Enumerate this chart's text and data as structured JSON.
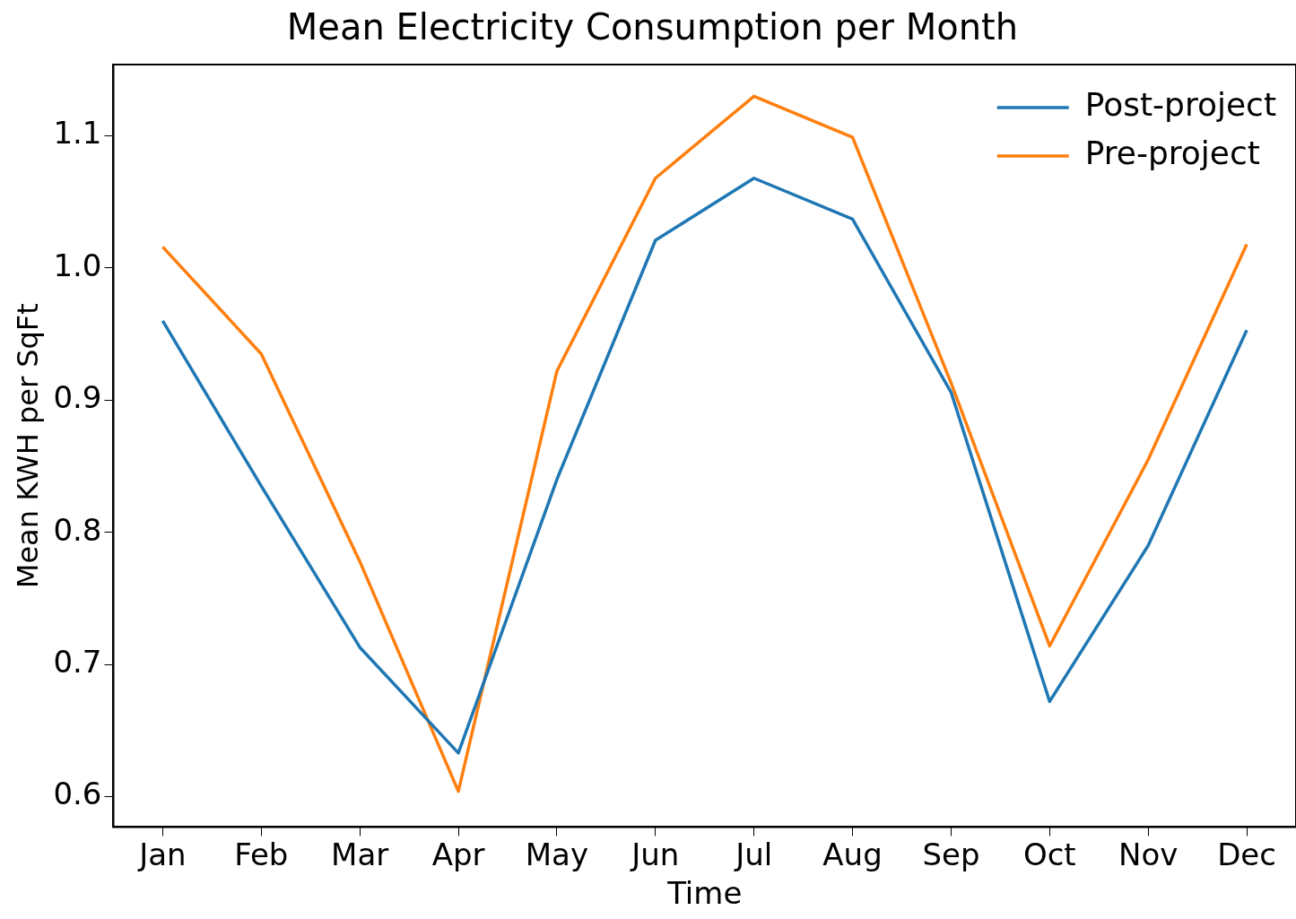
{
  "chart_data": {
    "type": "line",
    "title": "Mean Electricity Consumption per Month",
    "xlabel": "Time",
    "ylabel": "Mean KWH per SqFt",
    "categories": [
      "Jan",
      "Feb",
      "Mar",
      "Apr",
      "May",
      "Jun",
      "Jul",
      "Aug",
      "Sep",
      "Oct",
      "Nov",
      "Dec"
    ],
    "series": [
      {
        "name": "Post-project",
        "color": "#1f77b4",
        "values": [
          0.96,
          0.835,
          0.713,
          0.633,
          0.84,
          1.021,
          1.068,
          1.037,
          0.906,
          0.672,
          0.79,
          0.953
        ]
      },
      {
        "name": "Pre-project",
        "color": "#ff7f0e",
        "values": [
          1.016,
          0.935,
          0.778,
          0.604,
          0.922,
          1.068,
          1.13,
          1.099,
          0.913,
          0.714,
          0.855,
          1.018
        ]
      }
    ],
    "ylim": [
      0.577,
      1.154
    ],
    "yticks": [
      {
        "value": 0.6,
        "label": "0.6"
      },
      {
        "value": 0.7,
        "label": "0.7"
      },
      {
        "value": 0.8,
        "label": "0.8"
      },
      {
        "value": 0.9,
        "label": "0.9"
      },
      {
        "value": 1.0,
        "label": "1.0"
      },
      {
        "value": 1.1,
        "label": "1.1"
      }
    ],
    "legend": "top right",
    "grid": false,
    "marker": "none",
    "line_style": "solid"
  }
}
